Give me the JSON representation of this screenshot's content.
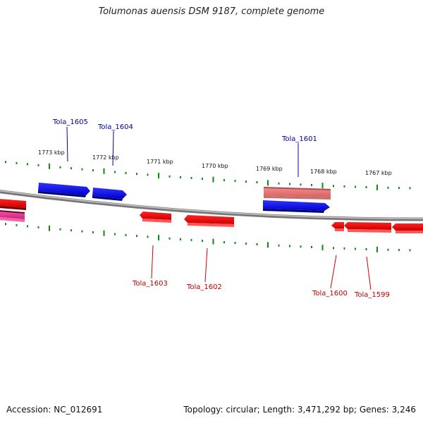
{
  "title": "Tolumonas auensis DSM 9187, complete genome",
  "footer": {
    "accession": "Accession: NC_012691",
    "summary": "Topology: circular; Length: 3,471,292 bp; Genes: 3,246"
  },
  "colors": {
    "forward_gene": "#0000ee",
    "reverse_gene": "#ee0000",
    "rna_gene": "#ee7777",
    "pseudo_gene": "#ee3388",
    "backbone": "#888888",
    "tick": "#118811",
    "forward_label": "#000099",
    "reverse_label": "#bb0000"
  },
  "ruler_labels": [
    "1773 kbp",
    "1772 kbp",
    "1771 kbp",
    "1770 kbp",
    "1769 kbp",
    "1768 kbp",
    "1767 kbp"
  ],
  "genes": [
    {
      "name": "Tola_1605",
      "strand": "forward",
      "labeled": true
    },
    {
      "name": "Tola_1604",
      "strand": "forward",
      "labeled": true
    },
    {
      "name": "Tola_1601",
      "strand": "forward",
      "labeled": true
    },
    {
      "name": "",
      "strand": "forward_rna",
      "labeled": false
    },
    {
      "name": "Tola_1603",
      "strand": "reverse",
      "labeled": true
    },
    {
      "name": "Tola_1602",
      "strand": "reverse",
      "labeled": true
    },
    {
      "name": "Tola_1600",
      "strand": "reverse",
      "labeled": true
    },
    {
      "name": "Tola_1599",
      "strand": "reverse",
      "labeled": true
    },
    {
      "name": "",
      "strand": "reverse",
      "labeled": false
    },
    {
      "name": "",
      "strand": "reverse",
      "labeled": false
    },
    {
      "name": "",
      "strand": "reverse_pseudo",
      "labeled": false
    }
  ]
}
